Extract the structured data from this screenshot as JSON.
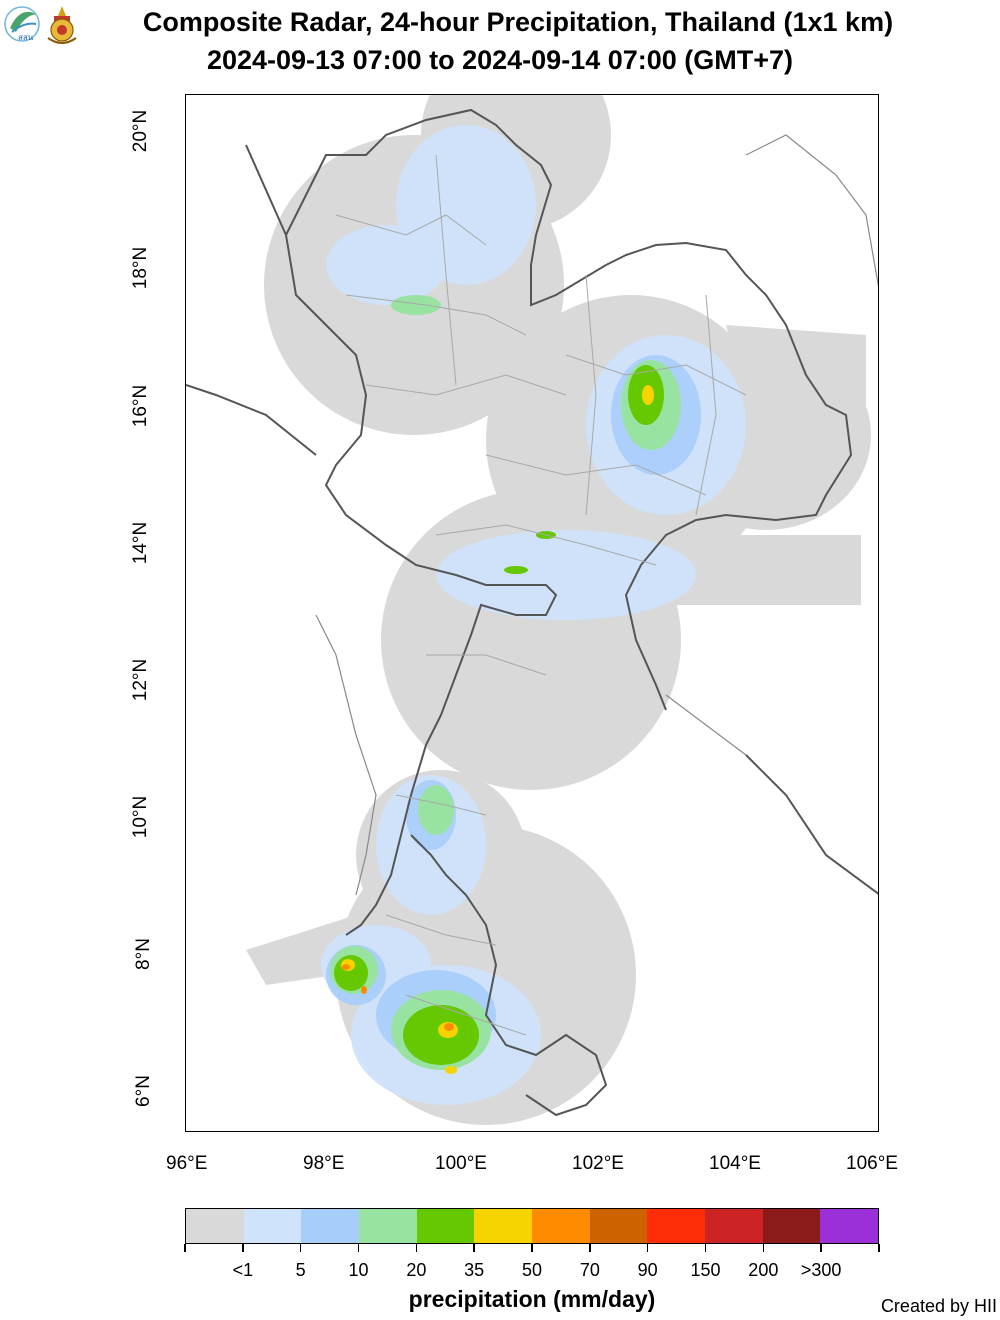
{
  "header": {
    "title_line1": "Composite Radar, 24-hour Precipitation, Thailand (1x1 km)",
    "title_line2": "2024-09-13 07:00 to 2024-09-14 07:00 (GMT+7)",
    "logo_text": "สสน"
  },
  "map": {
    "lat_ticks": [
      "20°N",
      "18°N",
      "16°N",
      "14°N",
      "12°N",
      "10°N",
      "8°N",
      "6°N"
    ],
    "lon_ticks": [
      "96°E",
      "98°E",
      "100°E",
      "102°E",
      "104°E",
      "106°E"
    ],
    "lon_range": [
      95.9,
      106.05
    ],
    "lat_range": [
      5.45,
      20.6
    ]
  },
  "legend": {
    "title": "precipitation (mm/day)",
    "labels": [
      "<1",
      "5",
      "10",
      "20",
      "35",
      "50",
      "70",
      "90",
      "150",
      "200",
      ">300"
    ],
    "colors": [
      "#d9d9d9",
      "#cfe3fb",
      "#a7cdfb",
      "#98e3a2",
      "#66c800",
      "#f7d400",
      "#ff8c00",
      "#cc6200",
      "#ff2d0a",
      "#cc2424",
      "#8b1a1a",
      "#9b30d9"
    ]
  },
  "footer": {
    "credit": "Created by HII"
  }
}
